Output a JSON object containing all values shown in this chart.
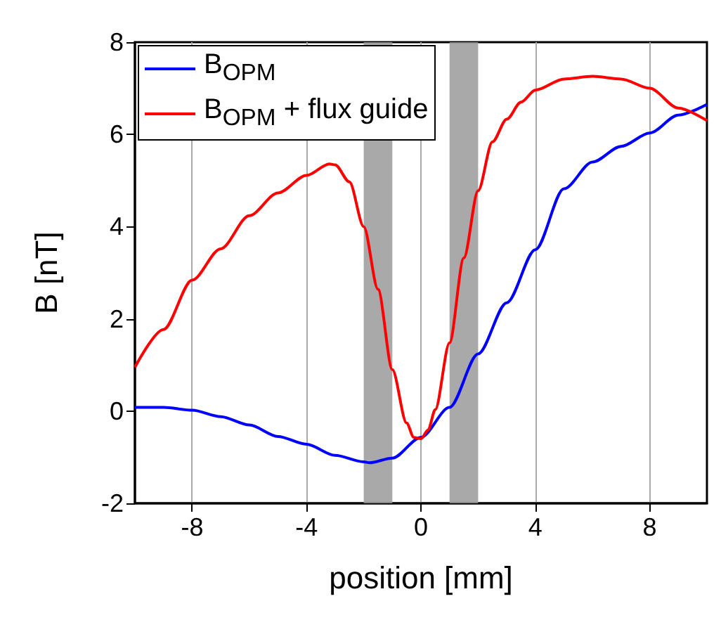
{
  "chart_data": {
    "type": "line",
    "xlabel": "position [mm]",
    "ylabel": "B [nT]",
    "xlim": [
      -10,
      10
    ],
    "xticks": [
      -8,
      -4,
      0,
      4,
      8
    ],
    "ylim": [
      -2,
      8
    ],
    "yticks": [
      -2,
      0,
      2,
      4,
      6,
      8
    ],
    "grid": "x",
    "legend": "top left",
    "marker": "none",
    "line_style": "solid",
    "bands": [
      {
        "axis": "x",
        "from": -2,
        "to": -1,
        "color": "#9a9a9a"
      },
      {
        "axis": "x",
        "from": 1,
        "to": 2,
        "color": "#9a9a9a"
      }
    ],
    "series": [
      {
        "name": "B$_{OPM}$",
        "color": "#0000ff",
        "x": [
          -10,
          -9,
          -8,
          -7,
          -6,
          -5,
          -4,
          -3,
          -2,
          -1.8,
          -1,
          0,
          1,
          2,
          3,
          4,
          5,
          6,
          7,
          8,
          9,
          10
        ],
        "values": [
          0.08,
          0.08,
          0.02,
          -0.12,
          -0.3,
          -0.55,
          -0.72,
          -0.96,
          -1.1,
          -1.12,
          -1.02,
          -0.57,
          0.08,
          1.24,
          2.35,
          3.5,
          4.82,
          5.4,
          5.74,
          6.03,
          6.42,
          6.65
        ]
      },
      {
        "name": "B$_{OPM}$ + flux guide",
        "color": "#ff0000",
        "x": [
          -10,
          -9,
          -8,
          -7,
          -6,
          -5,
          -4,
          -3.2,
          -3,
          -2.5,
          -2,
          -1.5,
          -1,
          -0.5,
          -0.25,
          0,
          0.25,
          0.5,
          1,
          1.5,
          2,
          2.5,
          3,
          3.5,
          4,
          5,
          6,
          7,
          8,
          9,
          10
        ],
        "values": [
          0.95,
          1.77,
          2.84,
          3.52,
          4.24,
          4.73,
          5.11,
          5.36,
          5.34,
          4.97,
          4.0,
          2.64,
          0.9,
          -0.26,
          -0.57,
          -0.6,
          -0.41,
          0.03,
          1.48,
          3.32,
          4.78,
          5.84,
          6.33,
          6.7,
          6.96,
          7.2,
          7.26,
          7.2,
          7.0,
          6.57,
          6.3
        ]
      }
    ]
  }
}
